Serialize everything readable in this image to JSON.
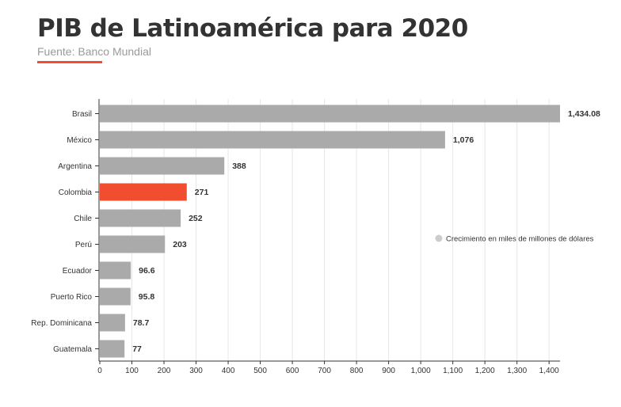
{
  "header": {
    "title": "PIB de Latinoamérica para 2020",
    "subtitle": "Fuente: Banco Mundial"
  },
  "colors": {
    "bar": "#aaaaaa",
    "highlight": "#f04e2f",
    "grid": "#e6e6e6",
    "axis": "#333333",
    "legend_dot": "#cccccc"
  },
  "chart_data": {
    "type": "bar",
    "orientation": "horizontal",
    "categories": [
      "Brasil",
      "México",
      "Argentina",
      "Colombia",
      "Chile",
      "Perú",
      "Ecuador",
      "Puerto Rico",
      "Rep. Dominicana",
      "Guatemala"
    ],
    "values": [
      1434.08,
      1076,
      388,
      271,
      252,
      203,
      96.6,
      95.8,
      78.7,
      77
    ],
    "value_labels": [
      "1,434.08",
      "1,076",
      "388",
      "271",
      "252",
      "203",
      "96.6",
      "95.8",
      "78.7",
      "77"
    ],
    "highlight_category": "Colombia",
    "xlim": [
      0,
      1434.08
    ],
    "x_ticks": [
      0,
      100,
      200,
      300,
      400,
      500,
      600,
      700,
      800,
      900,
      1000,
      1100,
      1200,
      1300,
      1400
    ],
    "x_tick_labels": [
      "0",
      "100",
      "200",
      "300",
      "400",
      "500",
      "600",
      "700",
      "800",
      "900",
      "1,000",
      "1,100",
      "1,200",
      "1,300",
      "1,400"
    ],
    "grid": true,
    "legend": {
      "placement": "right",
      "entries": [
        "Crecimiento en miles de millones de dólares"
      ]
    }
  }
}
